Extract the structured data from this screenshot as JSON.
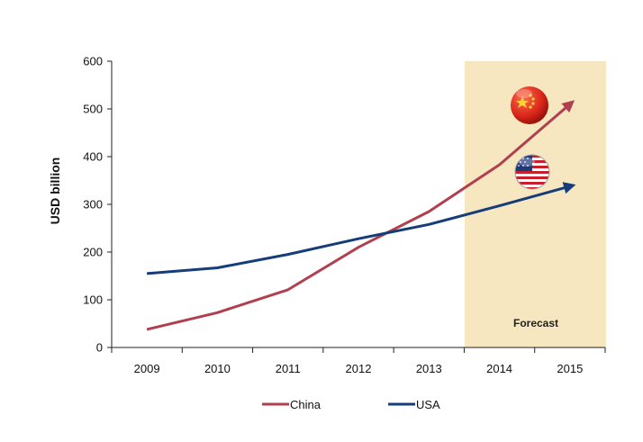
{
  "chart_data": {
    "type": "line",
    "categories": [
      "2009",
      "2010",
      "2011",
      "2012",
      "2013",
      "2014",
      "2015"
    ],
    "ylabel": "USD billion",
    "ylim": [
      0,
      600
    ],
    "yticks": [
      "0",
      "100",
      "200",
      "300",
      "400",
      "500",
      "600"
    ],
    "grid": false,
    "legend_position": "bottom",
    "series": [
      {
        "name": "China",
        "color": "#b0404f",
        "values": [
          38,
          73,
          121,
          210,
          285,
          383,
          510
        ],
        "end_icon": "china-flag-icon"
      },
      {
        "name": "USA",
        "color": "#143d7a",
        "values": [
          155,
          167,
          195,
          228,
          258,
          297,
          338
        ],
        "end_icon": "usa-flag-icon"
      }
    ],
    "forecast": {
      "label": "Forecast",
      "from": "2014",
      "to": "2015",
      "color": "#f7e7c0"
    }
  }
}
